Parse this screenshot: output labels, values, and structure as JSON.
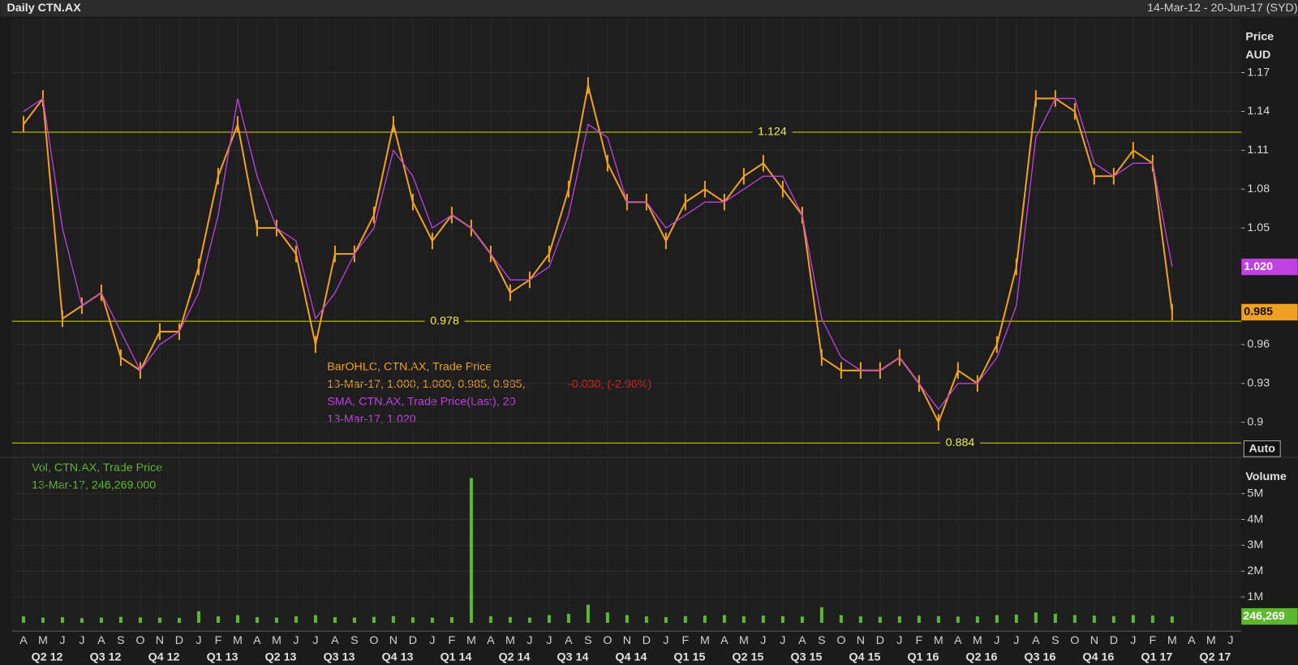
{
  "chart_data": {
    "type": "line",
    "title": "Daily CTN.AX",
    "date_range": "14-Mar-12 - 20-Jun-17 (SYD)",
    "categories": [
      "A",
      "M",
      "J",
      "J",
      "A",
      "S",
      "O",
      "N",
      "D",
      "J",
      "F",
      "M",
      "A",
      "M",
      "J",
      "J",
      "A",
      "S",
      "O",
      "N",
      "D",
      "J",
      "F",
      "M",
      "A",
      "M",
      "J",
      "J",
      "A",
      "S",
      "O",
      "N",
      "D",
      "J",
      "F",
      "M",
      "A",
      "M",
      "J",
      "J",
      "A",
      "S",
      "O",
      "N",
      "D",
      "J",
      "F",
      "M",
      "A",
      "M",
      "J",
      "J",
      "A",
      "S",
      "O",
      "N",
      "D",
      "J",
      "F",
      "M",
      "A",
      "M",
      "J"
    ],
    "quarters": [
      "Q2 12",
      "Q3 12",
      "Q4 12",
      "Q1 13",
      "Q2 13",
      "Q3 13",
      "Q4 13",
      "Q1 14",
      "Q2 14",
      "Q3 14",
      "Q4 14",
      "Q1 15",
      "Q2 15",
      "Q3 15",
      "Q4 15",
      "Q1 16",
      "Q2 16",
      "Q3 16",
      "Q4 16",
      "Q1 17",
      "Q2 17"
    ],
    "series": [
      {
        "name": "BarOHLC, CTN.AX, Trade Price",
        "color": "#f0a020",
        "info": "13-Mar-17, 1.000, 1.000, 0.985, 0.985,",
        "change": "-0.030, (-2.96%)",
        "values": [
          1.13,
          1.15,
          0.98,
          0.99,
          1.0,
          0.95,
          0.94,
          0.97,
          0.97,
          1.02,
          1.09,
          1.13,
          1.05,
          1.05,
          1.03,
          0.96,
          1.03,
          1.03,
          1.06,
          1.13,
          1.07,
          1.04,
          1.06,
          1.05,
          1.03,
          1.0,
          1.01,
          1.03,
          1.08,
          1.16,
          1.1,
          1.07,
          1.07,
          1.04,
          1.07,
          1.08,
          1.07,
          1.09,
          1.1,
          1.08,
          1.06,
          0.95,
          0.94,
          0.94,
          0.94,
          0.95,
          0.93,
          0.9,
          0.94,
          0.93,
          0.96,
          1.02,
          1.15,
          1.15,
          1.14,
          1.09,
          1.09,
          1.11,
          1.1,
          0.985,
          null,
          null,
          null
        ]
      },
      {
        "name": "SMA, CTN.AX, Trade Price(Last),  20",
        "color": "#c040e0",
        "info": "13-Mar-17, 1.020",
        "values": [
          1.14,
          1.15,
          1.05,
          0.99,
          1.0,
          0.97,
          0.94,
          0.96,
          0.97,
          1.0,
          1.06,
          1.15,
          1.09,
          1.05,
          1.04,
          0.98,
          1.0,
          1.03,
          1.05,
          1.11,
          1.09,
          1.05,
          1.06,
          1.05,
          1.03,
          1.01,
          1.01,
          1.02,
          1.06,
          1.13,
          1.12,
          1.07,
          1.07,
          1.05,
          1.06,
          1.07,
          1.07,
          1.08,
          1.09,
          1.09,
          1.06,
          0.98,
          0.95,
          0.94,
          0.94,
          0.95,
          0.93,
          0.91,
          0.93,
          0.93,
          0.95,
          0.99,
          1.12,
          1.15,
          1.15,
          1.1,
          1.09,
          1.1,
          1.1,
          1.02,
          null,
          null,
          null
        ]
      }
    ],
    "y_axis_label": "Price",
    "y_axis_unit": "AUD",
    "ylim": [
      0.878,
      1.212
    ],
    "yticks": [
      0.9,
      0.93,
      0.96,
      1.05,
      1.08,
      1.11,
      1.14,
      1.17
    ],
    "grid": true,
    "hlines": [
      1.124,
      0.978,
      0.884
    ],
    "hline_color": "#d8d800",
    "last_values": [
      {
        "value": 1.02,
        "label": "1.020"
      },
      {
        "value": 0.985,
        "label": "0.985"
      }
    ],
    "auto_label": "Auto",
    "volume": {
      "name": "Vol, CTN.AX, Trade Price",
      "info": "13-Mar-17, 246,269.000",
      "axis_label": "Volume",
      "color": "#5cb82c",
      "ylim": [
        0,
        6000000
      ],
      "yticks": [
        {
          "value": 1000000,
          "label": "1M"
        },
        {
          "value": 2000000,
          "label": "2M"
        },
        {
          "value": 3000000,
          "label": "3M"
        },
        {
          "value": 4000000,
          "label": "4M"
        },
        {
          "value": 5000000,
          "label": "5M"
        }
      ],
      "last": {
        "value": 246269,
        "label": "246,269"
      },
      "values": [
        250000,
        200000,
        220000,
        180000,
        200000,
        230000,
        210000,
        200000,
        190000,
        450000,
        250000,
        300000,
        220000,
        200000,
        250000,
        300000,
        220000,
        200000,
        230000,
        260000,
        210000,
        200000,
        220000,
        5600000,
        250000,
        220000,
        200000,
        300000,
        350000,
        700000,
        400000,
        300000,
        250000,
        220000,
        260000,
        280000,
        300000,
        250000,
        280000,
        260000,
        240000,
        600000,
        300000,
        250000,
        230000,
        250000,
        270000,
        260000,
        240000,
        250000,
        300000,
        320000,
        400000,
        350000,
        300000,
        280000,
        260000,
        300000,
        280000,
        246269,
        null,
        null,
        null
      ]
    }
  }
}
